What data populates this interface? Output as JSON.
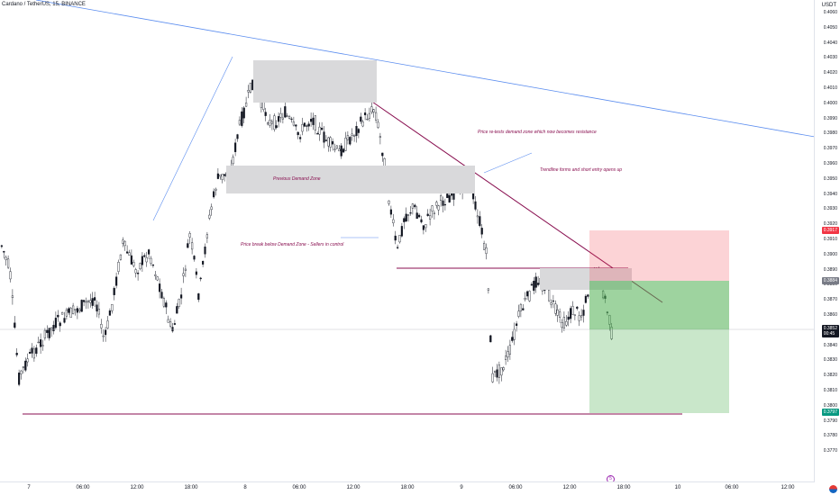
{
  "header": {
    "symbol": "Cardano / TetherUS, 15, BINANCE",
    "currency": "USDT"
  },
  "y_axis": {
    "ticks": [
      "0.4060",
      "0.4050",
      "0.4040",
      "0.4030",
      "0.4020",
      "0.4010",
      "0.4000",
      "0.3990",
      "0.3980",
      "0.3970",
      "0.3960",
      "0.3950",
      "0.3940",
      "0.3930",
      "0.3920",
      "0.3910",
      "0.3900",
      "0.3890",
      "0.3880",
      "0.3870",
      "0.3860",
      "0.3850",
      "0.3840",
      "0.3830",
      "0.3820",
      "0.3810",
      "0.3800",
      "0.3790",
      "0.3780",
      "0.3770"
    ],
    "price_tags": [
      {
        "label": "0.3917",
        "color": "#f23645"
      },
      {
        "label": "0.3884",
        "color": "#787b86"
      },
      {
        "label": "0.3852",
        "sub": "00:45",
        "color": "#131722"
      },
      {
        "label": "0.3797",
        "color": "#089981"
      }
    ]
  },
  "x_axis": {
    "ticks": [
      "7",
      "06:00",
      "12:00",
      "18:00",
      "8",
      "06:00",
      "12:00",
      "18:00",
      "9",
      "06:00",
      "12:00",
      "18:00",
      "10",
      "06:00",
      "12:00"
    ]
  },
  "annotations": {
    "retest": "Price re-tests demand zone which now becomes resistance",
    "trendline": "Trendline forms and short entry opens up",
    "previous_zone": "Previous Demand Zone",
    "break": "Price break below Demand Zone - Sellers in control"
  },
  "colors": {
    "bull": "#ffffff",
    "bear": "#131722",
    "trendline": "#880e4f",
    "long_line": "#5b8def",
    "zone": "#d9d9db"
  },
  "icons": {
    "event": "5",
    "flag": "flag-icon"
  }
}
